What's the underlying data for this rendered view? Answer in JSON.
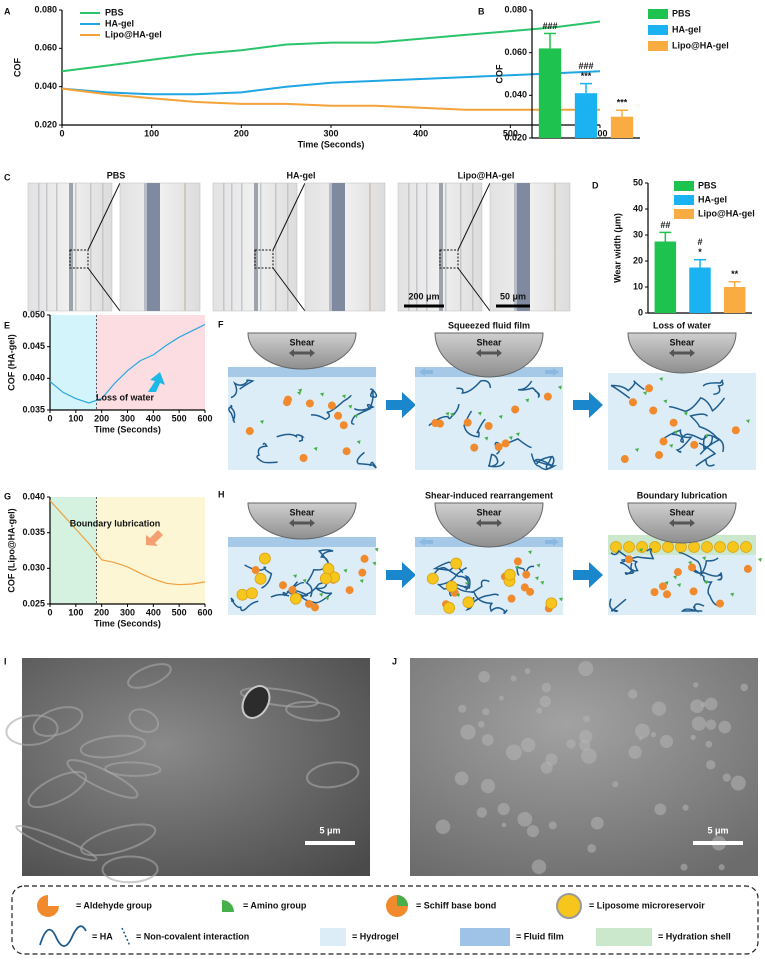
{
  "chart_data": [
    {
      "type": "line",
      "panel": "A",
      "x": [
        0,
        50,
        100,
        150,
        200,
        250,
        300,
        350,
        400,
        450,
        500,
        550,
        600
      ],
      "series": [
        {
          "name": "PBS",
          "color": "#2cc46b",
          "values": [
            0.048,
            0.051,
            0.054,
            0.057,
            0.059,
            0.062,
            0.063,
            0.063,
            0.065,
            0.067,
            0.069,
            0.071,
            0.074
          ]
        },
        {
          "name": "HA-gel",
          "color": "#1fa6e3",
          "values": [
            0.039,
            0.037,
            0.036,
            0.036,
            0.037,
            0.04,
            0.042,
            0.043,
            0.044,
            0.045,
            0.046,
            0.047,
            0.048
          ]
        },
        {
          "name": "Lipo@HA-gel",
          "color": "#f5a23a",
          "values": [
            0.039,
            0.036,
            0.034,
            0.032,
            0.031,
            0.031,
            0.03,
            0.03,
            0.029,
            0.028,
            0.028,
            0.028,
            0.028
          ]
        }
      ],
      "xlabel": "Time (Seconds)",
      "ylabel": "COF",
      "xlim": [
        0,
        600
      ],
      "ylim": [
        0.02,
        0.08
      ],
      "xticks": [
        0,
        100,
        200,
        300,
        400,
        500,
        600
      ],
      "yticks": [
        {
          "value": 0.02,
          "label": "0.020"
        },
        {
          "value": 0.04,
          "label": "0.040"
        },
        {
          "value": 0.06,
          "label": "0.060"
        },
        {
          "value": 0.08,
          "label": "0.080"
        }
      ],
      "legend": "top-left"
    },
    {
      "type": "bar",
      "panel": "B",
      "categories": [
        "PBS",
        "HA-gel",
        "Lipo@HA-gel"
      ],
      "colors": [
        "#1ec24f",
        "#1bb2f2",
        "#f9ac42"
      ],
      "values": [
        0.062,
        0.041,
        0.03
      ],
      "errors": [
        0.007,
        0.0045,
        0.003
      ],
      "annotations": [
        [
          "###"
        ],
        [
          "###",
          "***"
        ],
        [
          "***"
        ]
      ],
      "ylabel": "COF",
      "ylim": [
        0.02,
        0.08
      ],
      "yticks": [
        {
          "value": 0.02,
          "label": "0.020"
        },
        {
          "value": 0.04,
          "label": "0.040"
        },
        {
          "value": 0.06,
          "label": "0.060"
        },
        {
          "value": 0.08,
          "label": "0.080"
        }
      ],
      "legend": "right"
    },
    {
      "type": "bar",
      "panel": "D",
      "categories": [
        "PBS",
        "HA-gel",
        "Lipo@HA-gel"
      ],
      "colors": [
        "#1ec24f",
        "#1bb2f2",
        "#f9ac42"
      ],
      "values": [
        27.5,
        17.5,
        10
      ],
      "errors": [
        3.5,
        3,
        2
      ],
      "annotations": [
        [
          "##"
        ],
        [
          "#",
          "*"
        ],
        [
          "**"
        ]
      ],
      "ylabel": "Wear width (μm)",
      "ylim": [
        0,
        50
      ],
      "yticks": [
        0,
        10,
        20,
        30,
        40,
        50
      ],
      "legend": "top-right"
    },
    {
      "type": "line",
      "panel": "E",
      "x": [
        0,
        50,
        100,
        150,
        200,
        250,
        300,
        350,
        400,
        450,
        500,
        550,
        600
      ],
      "series": [
        {
          "color": "#29a8e0",
          "values": [
            0.0395,
            0.0378,
            0.0368,
            0.0361,
            0.0368,
            0.0392,
            0.0412,
            0.0428,
            0.0437,
            0.0452,
            0.0465,
            0.0475,
            0.0485
          ]
        }
      ],
      "regions": [
        {
          "xlim": [
            0,
            180
          ],
          "color": "#d3f4fa"
        },
        {
          "xlim": [
            180,
            600
          ],
          "color": "#fbdde2"
        }
      ],
      "annotation": "Loss of water",
      "xlabel": "Time (Seconds)",
      "ylabel": "COF (HA-gel)",
      "xlim": [
        0,
        600
      ],
      "ylim": [
        0.035,
        0.05
      ],
      "xticks": [
        0,
        100,
        200,
        300,
        400,
        500,
        600
      ],
      "yticks": [
        {
          "value": 0.035,
          "label": "0.035"
        },
        {
          "value": 0.04,
          "label": "0.040"
        },
        {
          "value": 0.045,
          "label": "0.045"
        },
        {
          "value": 0.05,
          "label": "0.050"
        }
      ]
    },
    {
      "type": "line",
      "panel": "G",
      "x": [
        0,
        50,
        100,
        150,
        200,
        250,
        300,
        350,
        400,
        450,
        500,
        550,
        600
      ],
      "series": [
        {
          "color": "#f0a040",
          "values": [
            0.0395,
            0.0375,
            0.0355,
            0.0335,
            0.0312,
            0.0308,
            0.0302,
            0.0293,
            0.0285,
            0.0279,
            0.0277,
            0.0278,
            0.0281
          ]
        }
      ],
      "regions": [
        {
          "xlim": [
            0,
            180
          ],
          "color": "#d4f2df"
        },
        {
          "xlim": [
            180,
            600
          ],
          "color": "#fdf6d4"
        }
      ],
      "annotation": "Boundary lubrication",
      "xlabel": "Time (Seconds)",
      "ylabel": "COF (Lipo@HA-gel)",
      "xlim": [
        0,
        600
      ],
      "ylim": [
        0.025,
        0.04
      ],
      "xticks": [
        0,
        100,
        200,
        300,
        400,
        500,
        600
      ],
      "yticks": [
        {
          "value": 0.025,
          "label": "0.025"
        },
        {
          "value": 0.03,
          "label": "0.030"
        },
        {
          "value": 0.035,
          "label": "0.035"
        },
        {
          "value": 0.04,
          "label": "0.040"
        }
      ]
    }
  ],
  "micrographs": {
    "panel": "C",
    "labels": [
      "PBS",
      "HA-gel",
      "Lipo@HA-gel"
    ],
    "scale_bars": [
      "200 μm",
      "50 μm"
    ]
  },
  "schematics": [
    {
      "panel": "F",
      "frames": [
        {
          "shear": "Shear"
        },
        {
          "shear": "Shear",
          "caption": "Squeezed fluid film"
        },
        {
          "shear": "Shear",
          "caption": "Loss of water"
        }
      ]
    },
    {
      "panel": "H",
      "frames": [
        {
          "shear": "Shear"
        },
        {
          "shear": "Shear",
          "caption": "Shear-induced rearrangement"
        },
        {
          "shear": "Shear",
          "caption": "Boundary lubrication"
        }
      ]
    }
  ],
  "sem": [
    {
      "panel": "I",
      "scale_bar": "5 μm"
    },
    {
      "panel": "J",
      "scale_bar": "5 μm"
    }
  ],
  "legend_box": {
    "items": [
      "= Aldehyde group",
      "= Amino group",
      "= Schiff base bond",
      "= Liposome microreservoir",
      "= HA",
      "= Non-covalent interaction",
      "= Hydrogel",
      "= Fluid film",
      "= Hydration shell"
    ]
  }
}
